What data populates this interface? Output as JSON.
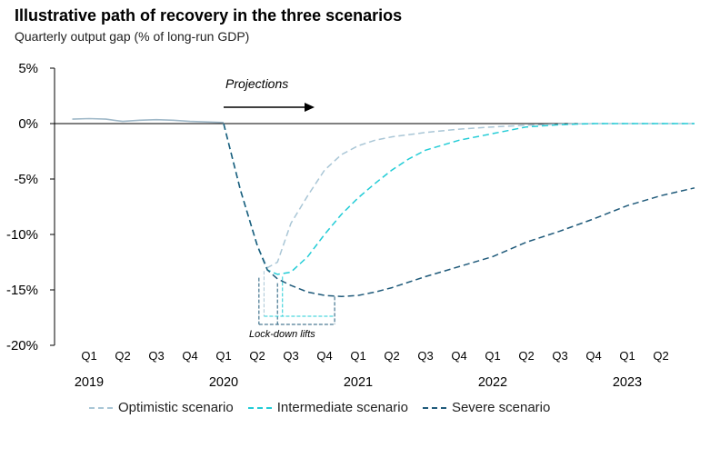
{
  "title": "Illustrative path of recovery in the three scenarios",
  "subtitle": "Quarterly output gap (% of long-run GDP)",
  "projections_label": "Projections",
  "lockdown_label": "Lock-down lifts",
  "colors": {
    "optimistic": "#a9c6d6",
    "intermediate": "#22ccd6",
    "severe": "#1f5a7a",
    "history": "#9fb8c8",
    "axis": "#000000"
  },
  "chart_data": {
    "type": "line",
    "title": "Illustrative path of recovery in the three scenarios",
    "ylabel": "Quarterly output gap (% of long-run GDP)",
    "ylim": [
      -20,
      5
    ],
    "y_ticks": [
      5,
      0,
      -5,
      -10,
      -15,
      -20
    ],
    "y_tick_labels": [
      "5%",
      "0%",
      "-5%",
      "-10%",
      "-15%",
      "-20%"
    ],
    "x_labels": [
      "Q1",
      "Q2",
      "Q3",
      "Q4",
      "Q1",
      "Q2",
      "Q3",
      "Q4",
      "Q1",
      "Q2",
      "Q3",
      "Q4",
      "Q1",
      "Q2",
      "Q3",
      "Q4",
      "Q1",
      "Q2"
    ],
    "years": [
      {
        "label": "2019",
        "quarter_index": 0
      },
      {
        "label": "2020",
        "quarter_index": 4
      },
      {
        "label": "2021",
        "quarter_index": 8
      },
      {
        "label": "2022",
        "quarter_index": 12
      },
      {
        "label": "2023",
        "quarter_index": 16
      }
    ],
    "history": {
      "x": [
        -0.5,
        0,
        0.5,
        1,
        1.5,
        2,
        2.5,
        3,
        3.5,
        4
      ],
      "values": [
        0.4,
        0.45,
        0.4,
        0.2,
        0.3,
        0.35,
        0.3,
        0.2,
        0.15,
        0.1
      ]
    },
    "series": [
      {
        "name": "Optimistic scenario",
        "key": "optimistic",
        "x": [
          4,
          4.5,
          5,
          5.3,
          5.6,
          6,
          6.5,
          7,
          7.5,
          8,
          8.5,
          9,
          10,
          11,
          12,
          13,
          14,
          15,
          16,
          17,
          18
        ],
        "values": [
          0,
          -6,
          -11,
          -13,
          -12.5,
          -9,
          -6.5,
          -4.2,
          -2.8,
          -2,
          -1.5,
          -1.2,
          -0.8,
          -0.5,
          -0.3,
          -0.15,
          -0.05,
          0,
          0,
          0,
          0
        ]
      },
      {
        "name": "Intermediate scenario",
        "key": "intermediate",
        "x": [
          4,
          4.5,
          5,
          5.3,
          5.6,
          6,
          6.5,
          7,
          7.5,
          8,
          8.5,
          9,
          9.5,
          10,
          11,
          12,
          13,
          14,
          15,
          16,
          17,
          18
        ],
        "values": [
          0,
          -6,
          -11,
          -13.2,
          -13.6,
          -13.4,
          -12,
          -10,
          -8.2,
          -6.7,
          -5.4,
          -4.2,
          -3.2,
          -2.4,
          -1.5,
          -0.9,
          -0.3,
          -0.1,
          0,
          0,
          0,
          0
        ]
      },
      {
        "name": "Severe scenario",
        "key": "severe",
        "x": [
          4,
          4.5,
          5,
          5.3,
          5.6,
          6,
          6.5,
          7,
          7.5,
          8,
          8.5,
          9,
          10,
          11,
          12,
          13,
          14,
          15,
          16,
          17,
          18
        ],
        "values": [
          0,
          -6,
          -11,
          -13.2,
          -14,
          -14.6,
          -15.2,
          -15.5,
          -15.6,
          -15.5,
          -15.2,
          -14.8,
          -13.8,
          -12.9,
          -12,
          -10.7,
          -9.7,
          -8.6,
          -7.4,
          -6.5,
          -5.8
        ]
      }
    ],
    "legend": "bottom",
    "grid": false
  }
}
